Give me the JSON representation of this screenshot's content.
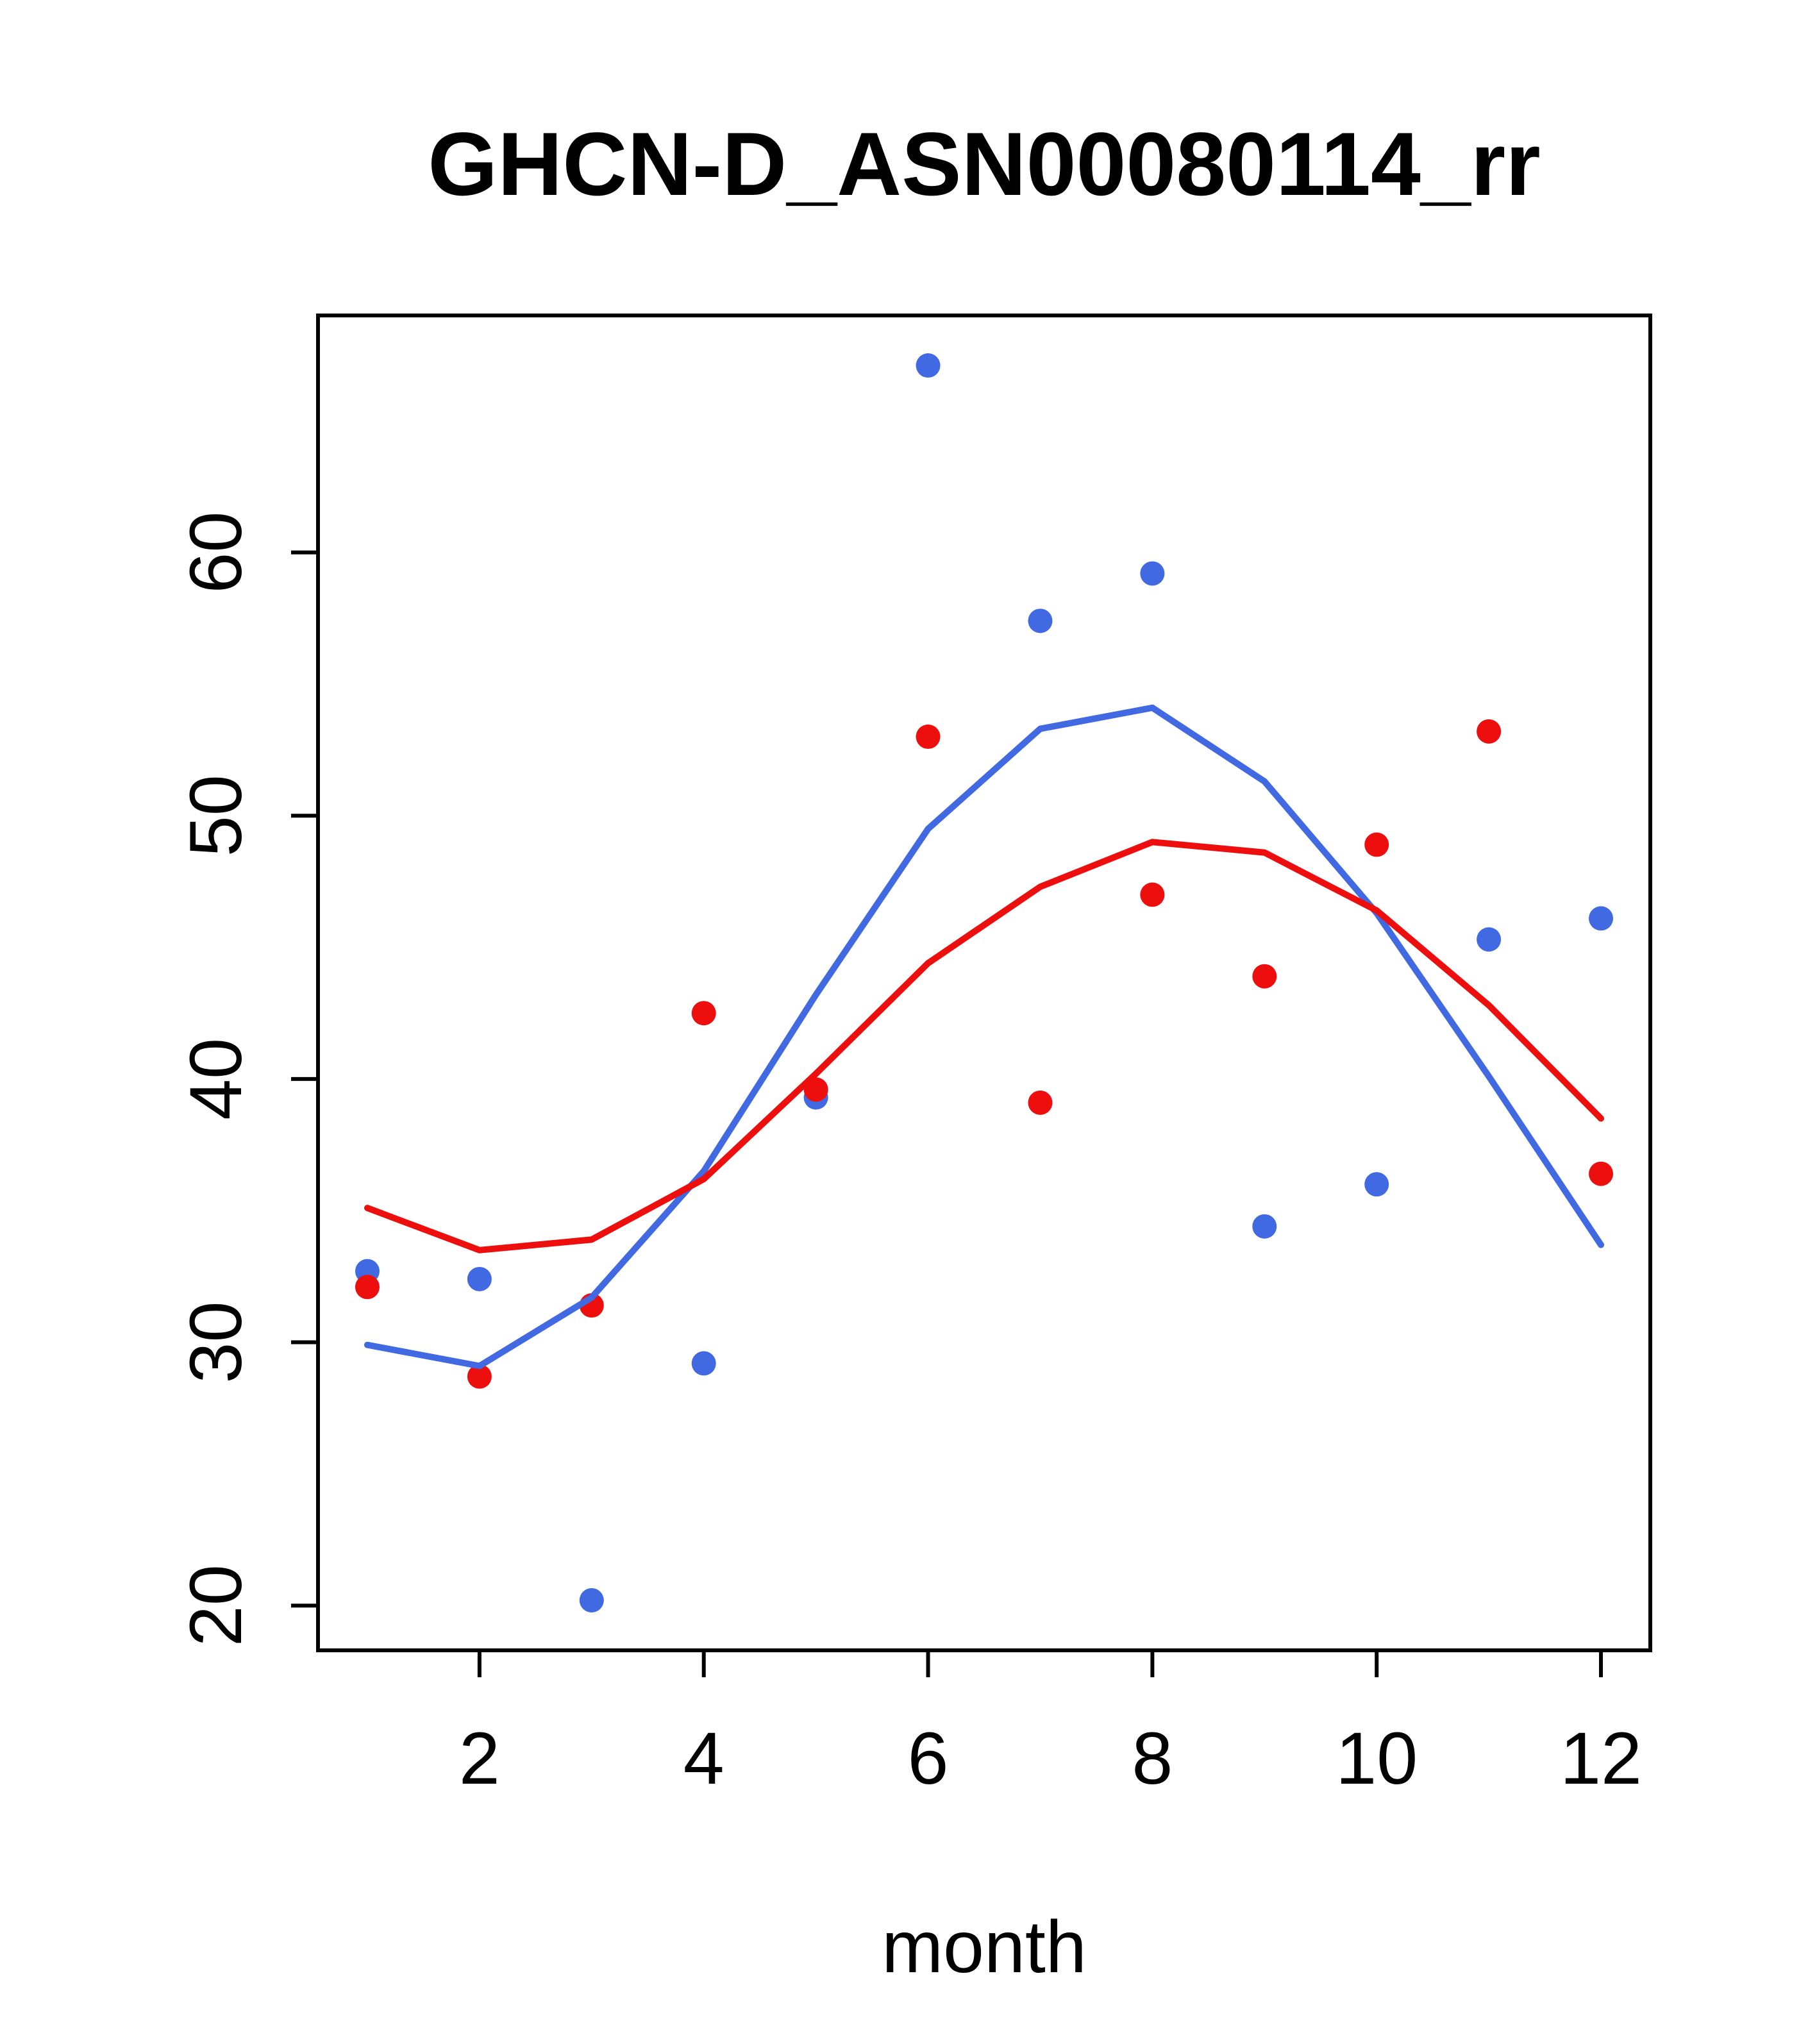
{
  "title": "GHCN-D_ASN00080114_rr",
  "style": {
    "background": "#ffffff",
    "axis_color": "#000000",
    "blue": "#4169E1",
    "red": "#ED0E0E"
  },
  "chart_data": {
    "type": "scatter",
    "title": "GHCN-D_ASN00080114_rr",
    "xlabel": "month",
    "ylabel": "",
    "xlim": [
      0.56,
      12.44
    ],
    "ylim": [
      18.3,
      69.0
    ],
    "x_ticks": [
      2,
      4,
      6,
      8,
      10,
      12
    ],
    "y_ticks": [
      20,
      30,
      40,
      50,
      60
    ],
    "grid": false,
    "legend": null,
    "x": [
      1,
      2,
      3,
      4,
      5,
      6,
      7,
      8,
      9,
      10,
      11,
      12
    ],
    "series": [
      {
        "name": "blue-points",
        "type": "points",
        "color": "#4169E1",
        "values": [
          32.7,
          32.4,
          20.2,
          29.2,
          39.3,
          67.1,
          57.4,
          59.2,
          34.4,
          36.0,
          45.3,
          46.1
        ]
      },
      {
        "name": "red-points",
        "type": "points",
        "color": "#ED0E0E",
        "values": [
          32.1,
          28.7,
          31.4,
          42.5,
          39.6,
          53.0,
          39.1,
          47.0,
          43.9,
          48.9,
          53.2,
          36.4
        ]
      },
      {
        "name": "blue-smooth-line",
        "type": "line",
        "color": "#4169E1",
        "values": [
          29.9,
          29.1,
          31.7,
          36.5,
          43.2,
          49.5,
          53.3,
          54.1,
          51.3,
          46.3,
          40.1,
          33.7
        ]
      },
      {
        "name": "red-smooth-line",
        "type": "line",
        "color": "#ED0E0E",
        "values": [
          35.1,
          33.5,
          33.9,
          36.2,
          40.2,
          44.4,
          47.3,
          49.0,
          48.6,
          46.4,
          42.8,
          38.5
        ]
      }
    ]
  }
}
